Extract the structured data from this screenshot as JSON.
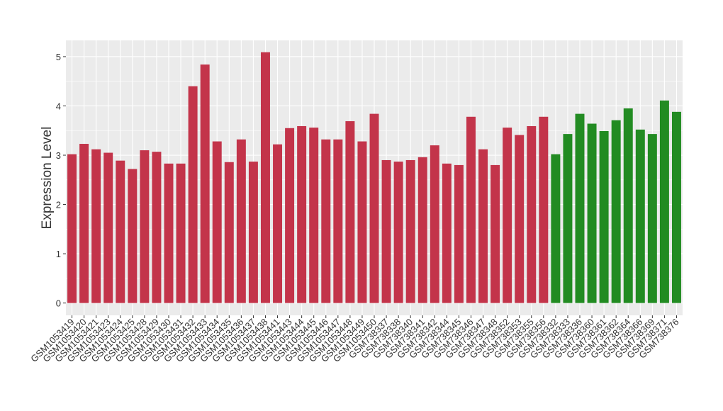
{
  "chart_data": {
    "type": "bar",
    "y_label": "Expression Level",
    "categories": [
      "GSM1053419",
      "GSM1053420",
      "GSM1053421",
      "GSM1053423",
      "GSM1053424",
      "GSM1053425",
      "GSM1053428",
      "GSM1053429",
      "GSM1053430",
      "GSM1053431",
      "GSM1053432",
      "GSM1053433",
      "GSM1053434",
      "GSM1053435",
      "GSM1053436",
      "GSM1053437",
      "GSM1053438",
      "GSM1053441",
      "GSM1053443",
      "GSM1053444",
      "GSM1053445",
      "GSM1053446",
      "GSM1053447",
      "GSM1053448",
      "GSM1053449",
      "GSM1053450",
      "GSM738337",
      "GSM738338",
      "GSM738340",
      "GSM738341",
      "GSM738342",
      "GSM738344",
      "GSM738345",
      "GSM738346",
      "GSM738347",
      "GSM738348",
      "GSM738352",
      "GSM738353",
      "GSM738355",
      "GSM738356",
      "GSM738332",
      "GSM738333",
      "GSM738336",
      "GSM738360",
      "GSM738361",
      "GSM738362",
      "GSM738364",
      "GSM738366",
      "GSM738369",
      "GSM738371",
      "GSM738376"
    ],
    "values": [
      3.02,
      3.23,
      3.12,
      3.05,
      2.89,
      2.72,
      3.1,
      3.07,
      2.83,
      2.83,
      4.4,
      4.84,
      3.28,
      2.86,
      3.32,
      2.87,
      5.09,
      3.22,
      3.55,
      3.59,
      3.56,
      3.32,
      3.32,
      3.69,
      3.28,
      3.84,
      2.9,
      2.87,
      2.9,
      2.96,
      3.2,
      2.83,
      2.8,
      3.78,
      3.12,
      2.8,
      3.56,
      3.41,
      3.59,
      3.78,
      3.02,
      3.43,
      3.84,
      3.64,
      3.49,
      3.71,
      3.95,
      3.52,
      3.43,
      4.11,
      3.88
    ],
    "colors": [
      "#c3344a",
      "#c3344a",
      "#c3344a",
      "#c3344a",
      "#c3344a",
      "#c3344a",
      "#c3344a",
      "#c3344a",
      "#c3344a",
      "#c3344a",
      "#c3344a",
      "#c3344a",
      "#c3344a",
      "#c3344a",
      "#c3344a",
      "#c3344a",
      "#c3344a",
      "#c3344a",
      "#c3344a",
      "#c3344a",
      "#c3344a",
      "#c3344a",
      "#c3344a",
      "#c3344a",
      "#c3344a",
      "#c3344a",
      "#c3344a",
      "#c3344a",
      "#c3344a",
      "#c3344a",
      "#c3344a",
      "#c3344a",
      "#c3344a",
      "#c3344a",
      "#c3344a",
      "#c3344a",
      "#c3344a",
      "#c3344a",
      "#c3344a",
      "#c3344a",
      "#228b22",
      "#228b22",
      "#228b22",
      "#228b22",
      "#228b22",
      "#228b22",
      "#228b22",
      "#228b22",
      "#228b22",
      "#228b22",
      "#228b22"
    ],
    "ylim": [
      -0.25,
      5.33
    ],
    "yticks": [
      0,
      1,
      2,
      3,
      4,
      5
    ],
    "grid": true
  }
}
